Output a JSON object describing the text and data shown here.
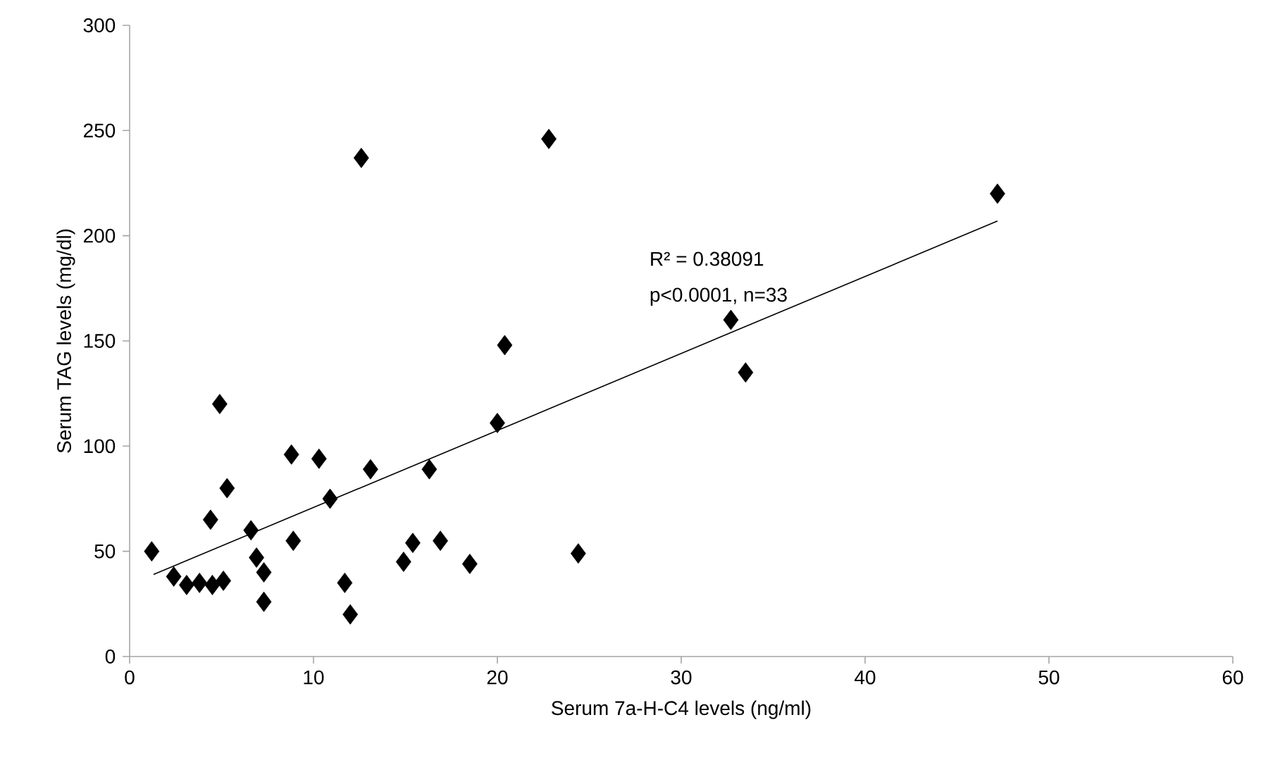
{
  "chart_data": {
    "type": "scatter",
    "xlabel": "Serum 7a-H-C4 levels  (ng/ml)",
    "ylabel": "Serum TAG levels (mg/dl)",
    "xlim": [
      0,
      60
    ],
    "ylim": [
      0,
      300
    ],
    "xticks": [
      0,
      10,
      20,
      30,
      40,
      50,
      60
    ],
    "yticks": [
      0,
      50,
      100,
      150,
      200,
      250,
      300
    ],
    "marker": "diamond",
    "series": [
      {
        "color": "#000000",
        "x": [
          1.2,
          4.9,
          5.3,
          4.4,
          6.6,
          8.8,
          10.3,
          13.1,
          10.9,
          8.9,
          16.3,
          15.4,
          14.9,
          11.7,
          12.0,
          6.9,
          7.3,
          7.3,
          2.4,
          3.1,
          3.8,
          4.5,
          5.1,
          12.6,
          22.8,
          20.4,
          20.0,
          24.4,
          18.5,
          16.9,
          32.7,
          33.5,
          47.2
        ],
        "values": [
          50,
          120,
          80,
          65,
          60,
          96,
          94,
          89,
          75,
          55,
          89,
          54,
          45,
          35,
          20,
          47,
          40,
          26,
          38,
          34,
          35,
          34,
          36,
          237,
          246,
          148,
          111,
          49,
          44,
          55,
          160,
          135,
          220
        ]
      },
      {
        "type": "line",
        "color": "#000000",
        "marker": "none",
        "x": [
          1.3,
          47.2
        ],
        "values": [
          39,
          207
        ]
      }
    ],
    "annotations": [
      "R² = 0.38091",
      "p<0.0001, n=33"
    ]
  }
}
